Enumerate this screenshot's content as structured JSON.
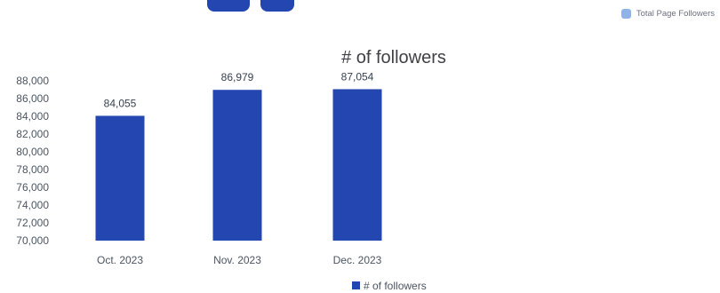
{
  "colors": {
    "accent": "#2446b0",
    "legend_light": "#8fb3e8"
  },
  "header": {
    "legend_label": "Total Page Followers"
  },
  "chart_data": {
    "type": "bar",
    "title": "# of followers",
    "categories": [
      "Oct. 2023",
      "Nov. 2023",
      "Dec. 2023"
    ],
    "series": [
      {
        "name": "# of followers",
        "values": [
          84055,
          86979,
          87054
        ]
      }
    ],
    "data_labels": [
      "84,055",
      "86,979",
      "87,054"
    ],
    "yticks": [
      "70,000",
      "72,000",
      "74,000",
      "76,000",
      "78,000",
      "80,000",
      "82,000",
      "84,000",
      "86,000",
      "88,000"
    ],
    "ylim": [
      70000,
      88000
    ],
    "grid": false,
    "legend_position": "bottom",
    "xlabel": "",
    "ylabel": ""
  }
}
